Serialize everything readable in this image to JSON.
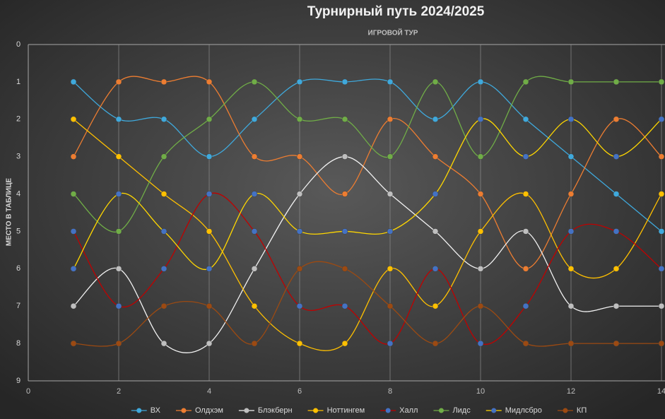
{
  "chart_data": {
    "type": "line",
    "title": "Турнирный путь 2024/2025",
    "x_label": "ИГРОВОЙ ТУР",
    "y_label": "МЕСТО В ТАБЛИЦЕ",
    "x": [
      1,
      2,
      3,
      4,
      5,
      6,
      7,
      8,
      9,
      10,
      11,
      12,
      13,
      14
    ],
    "xlim": [
      0,
      14
    ],
    "xticks": [
      0,
      2,
      4,
      6,
      8,
      10,
      12,
      14
    ],
    "ylim": [
      0,
      9
    ],
    "yticks": [
      0,
      1,
      2,
      3,
      4,
      5,
      6,
      7,
      8,
      9
    ],
    "y_reversed": true,
    "grid": true,
    "smooth": true,
    "legend": "bottom",
    "series": [
      {
        "name": "ВХ",
        "color": "#3fa9dc",
        "marker_color": "#3fa9dc",
        "values": [
          1,
          2,
          2,
          3,
          2,
          1,
          1,
          1,
          2,
          1,
          2,
          3,
          4,
          5
        ]
      },
      {
        "name": "Олдхэм",
        "color": "#ed7d31",
        "marker_color": "#ed7d31",
        "values": [
          3,
          1,
          1,
          1,
          3,
          3,
          4,
          2,
          3,
          4,
          6,
          4,
          2,
          3
        ]
      },
      {
        "name": "Блэкберн",
        "color": "#f2f2f2",
        "marker_color": "#bfbfbf",
        "values": [
          7,
          6,
          8,
          8,
          6,
          4,
          3,
          4,
          5,
          6,
          5,
          7,
          7,
          7
        ]
      },
      {
        "name": "Ноттингем",
        "color": "#ffc000",
        "marker_color": "#ffc000",
        "values": [
          2,
          3,
          4,
          5,
          7,
          8,
          8,
          6,
          7,
          5,
          4,
          6,
          6,
          4
        ]
      },
      {
        "name": "Халл",
        "color": "#c00000",
        "marker_color": "#4472c4",
        "values": [
          5,
          7,
          6,
          4,
          5,
          7,
          7,
          8,
          6,
          8,
          7,
          5,
          5,
          6
        ]
      },
      {
        "name": "Лидс",
        "color": "#70ad47",
        "marker_color": "#70ad47",
        "values": [
          4,
          5,
          3,
          2,
          1,
          2,
          2,
          3,
          1,
          3,
          1,
          1,
          1,
          1
        ]
      },
      {
        "name": "Мидлсбро",
        "color": "#ffd700",
        "marker_color": "#4472c4",
        "values": [
          6,
          4,
          5,
          6,
          4,
          5,
          5,
          5,
          4,
          2,
          3,
          2,
          3,
          2
        ]
      },
      {
        "name": "КП",
        "color": "#9c4a12",
        "marker_color": "#9c4a12",
        "values": [
          8,
          8,
          7,
          7,
          8,
          6,
          6,
          7,
          8,
          7,
          8,
          8,
          8,
          8
        ]
      }
    ]
  }
}
